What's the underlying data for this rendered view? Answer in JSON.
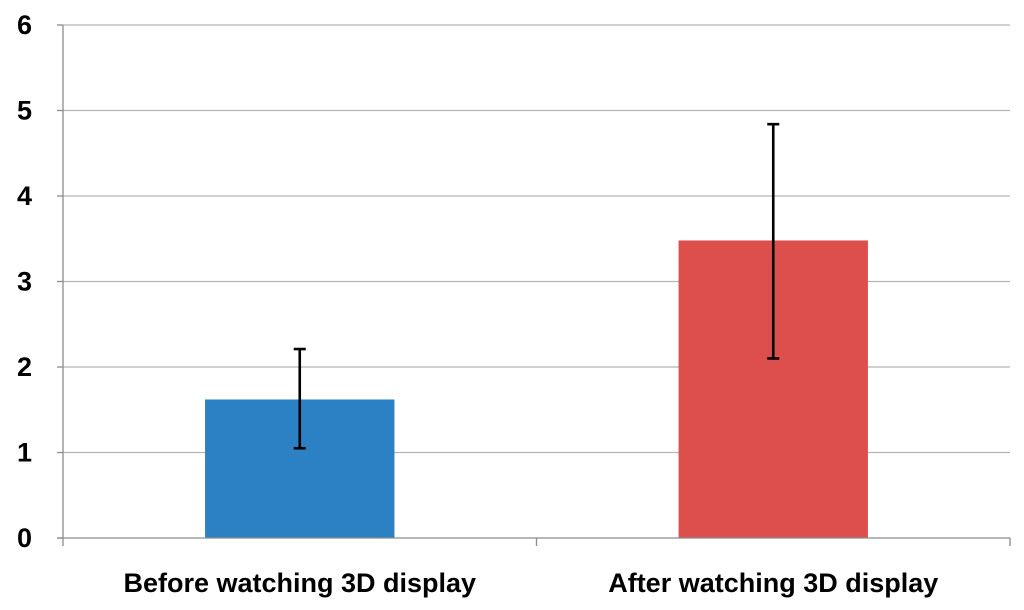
{
  "chart_data": {
    "type": "bar",
    "title": "",
    "xlabel": "",
    "ylabel": "",
    "categories": [
      "Before watching 3D display",
      "After watching 3D display"
    ],
    "values": [
      1.62,
      3.48
    ],
    "error_low": [
      1.05,
      2.1
    ],
    "error_high": [
      2.21,
      4.84
    ],
    "colors": [
      "#2b81c4",
      "#dc4f4d"
    ],
    "ylim": [
      0,
      6
    ],
    "yticks": [
      "0",
      "1",
      "2",
      "3",
      "4",
      "5",
      "6"
    ],
    "grid": true,
    "legend": "none"
  }
}
